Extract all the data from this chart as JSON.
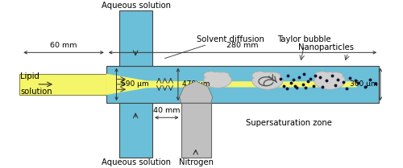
{
  "bg_color": "#ffffff",
  "channel_blue": "#6bbfd8",
  "yellow_light": "#f5f56a",
  "yellow_mid": "#e8e840",
  "nitrogen_gray": "#c0c0c0",
  "bubble_gray": "#d0d0d0",
  "bubble_edge": "#aaaaaa",
  "dot_color": "#1a1a2e",
  "line_color": "#333333",
  "text_color": "#000000",
  "labels": {
    "aqueous_top": "Aqueous solution",
    "aqueous_bottom": "Aqueous solution",
    "lipid1": "Lipid",
    "lipid2": "solution",
    "solvent_diffusion": "Solvent diffusion",
    "taylor_bubble": "Taylor bubble",
    "supersaturation": "Supersaturation zone",
    "nanoparticles": "Nanoparticles",
    "nitrogen": "Nitrogen",
    "dim_60mm": "60 mm",
    "dim_280mm": "280 mm",
    "dim_40mm": "40 mm",
    "dim_590um": "590 μm",
    "dim_470um": "470 μm",
    "dim_360um": "360 μm"
  },
  "figsize": [
    5.0,
    2.09
  ],
  "dpi": 100
}
